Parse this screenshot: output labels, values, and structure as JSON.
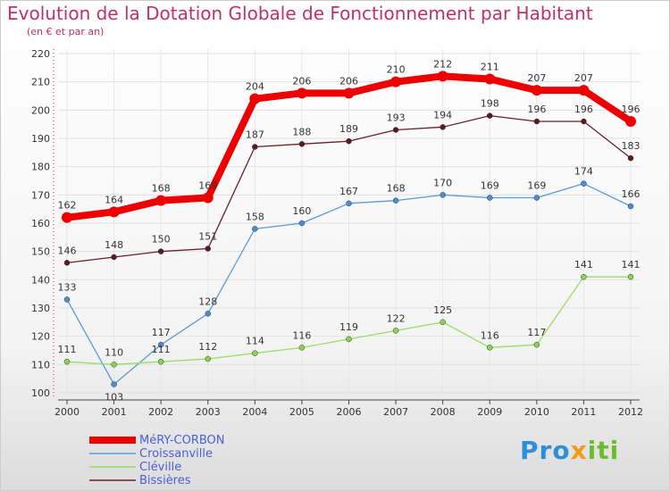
{
  "title": "Evolution de la Dotation Globale de Fonctionnement par Habitant",
  "subtitle": "(en € et par an)",
  "brand": {
    "p1": "Pro",
    "p2": "x",
    "p3": "iti"
  },
  "chart_data": {
    "type": "line",
    "title": "Evolution de la Dotation Globale de Fonctionnement par Habitant",
    "ylabel": "(en € et par an)",
    "xlabel": "",
    "x": [
      "2000",
      "2001",
      "2002",
      "2003",
      "2004",
      "2005",
      "2006",
      "2007",
      "2008",
      "2009",
      "2010",
      "2011",
      "2012"
    ],
    "ylim": [
      100,
      220
    ],
    "yticks": [
      100,
      110,
      120,
      130,
      140,
      150,
      160,
      170,
      180,
      190,
      200,
      210,
      220
    ],
    "grid": true,
    "legend_position": "bottom-left",
    "series": [
      {
        "name": "MéRY-CORBON",
        "color": "#ee0000",
        "values": [
          162,
          164,
          168,
          169,
          204,
          206,
          206,
          210,
          212,
          211,
          207,
          207,
          196
        ]
      },
      {
        "name": "Croissanville",
        "color": "#5b9bd5",
        "values": [
          133,
          103,
          117,
          128,
          158,
          160,
          167,
          168,
          170,
          169,
          169,
          174,
          166
        ]
      },
      {
        "name": "Cléville",
        "color": "#99dd66",
        "values": [
          111,
          110,
          111,
          112,
          114,
          116,
          119,
          122,
          125,
          116,
          117,
          141,
          141
        ]
      },
      {
        "name": "Bissières",
        "color": "#6b1e2a",
        "values": [
          146,
          148,
          150,
          151,
          187,
          188,
          189,
          193,
          194,
          198,
          196,
          196,
          183
        ]
      }
    ]
  }
}
